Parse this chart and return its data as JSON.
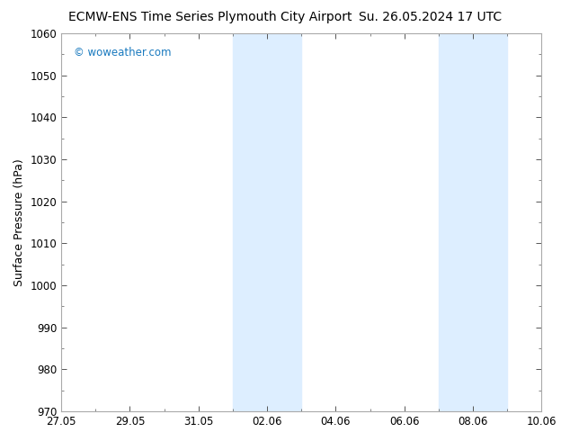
{
  "title_left": "ECMW-ENS Time Series Plymouth City Airport",
  "title_right": "Su. 26.05.2024 17 UTC",
  "ylabel": "Surface Pressure (hPa)",
  "ylim": [
    970,
    1060
  ],
  "yticks": [
    970,
    980,
    990,
    1000,
    1010,
    1020,
    1030,
    1040,
    1050,
    1060
  ],
  "xtick_labels": [
    "27.05",
    "29.05",
    "31.05",
    "02.06",
    "04.06",
    "06.06",
    "08.06",
    "10.06"
  ],
  "xtick_positions": [
    0,
    2,
    4,
    6,
    8,
    10,
    12,
    14
  ],
  "shaded_bands": [
    {
      "x_start": 5.0,
      "x_end": 7.0
    },
    {
      "x_start": 11.0,
      "x_end": 13.0
    }
  ],
  "watermark": "© woweather.com",
  "watermark_color": "#1a7abf",
  "bg_color": "#ffffff",
  "plot_bg_color": "#ffffff",
  "border_color": "#aaaaaa",
  "shaded_color": "#ddeeff",
  "title_fontsize": 10,
  "tick_label_fontsize": 8.5,
  "ylabel_fontsize": 9
}
